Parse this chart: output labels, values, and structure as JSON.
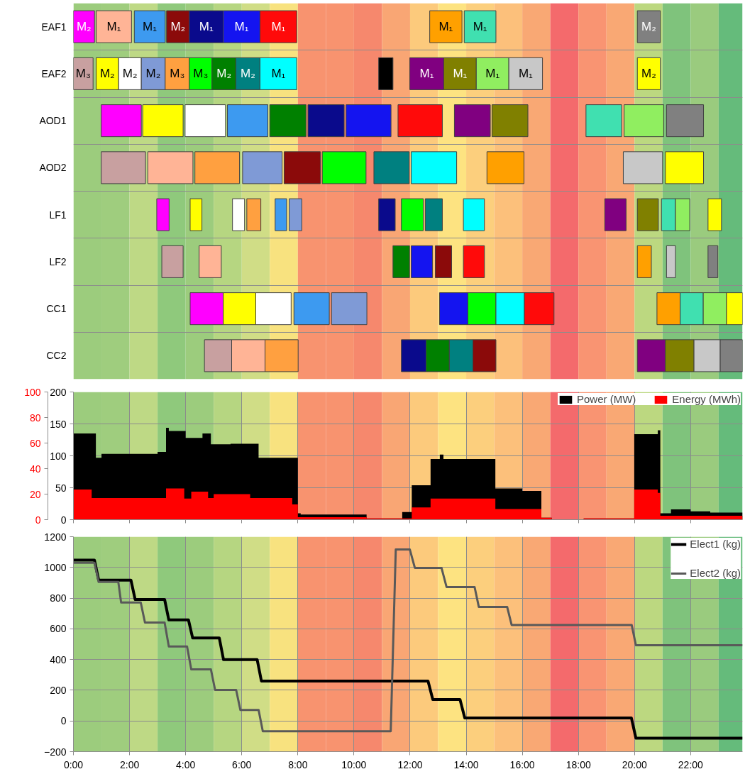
{
  "chart_data": [
    {
      "type": "bar",
      "orientation": "horizontal",
      "categories": [
        "EAF1",
        "EAF2",
        "AOD1",
        "AOD2",
        "LF1",
        "LF2",
        "CC1",
        "CC2"
      ],
      "xlim": [
        0,
        23.85
      ],
      "tick_labels": "y",
      "grid": "y",
      "series": [
        {
          "color": "#ff00ff",
          "base": [
            0,
            null,
            0.99,
            null,
            2.97,
            null,
            4.16,
            null
          ],
          "values": [
            0.75,
            null,
            1.43,
            null,
            0.44,
            null,
            1.18,
            null
          ],
          "value_labels": [
            "M₂",
            null,
            null,
            null,
            null,
            null,
            null,
            null
          ]
        },
        {
          "color": "#ffb496",
          "base": [
            0.81,
            null,
            null,
            2.65,
            null,
            4.48,
            null,
            5.64
          ],
          "values": [
            1.26,
            null,
            null,
            1.61,
            null,
            0.79,
            null,
            1.19
          ],
          "value_labels": [
            "M₁",
            null,
            null,
            null,
            null,
            null,
            null,
            null
          ]
        },
        {
          "color": "#3d9af0",
          "base": [
            2.17,
            null,
            5.49,
            null,
            7.19,
            null,
            7.86,
            null
          ],
          "values": [
            1.1,
            null,
            1.44,
            null,
            0.41,
            null,
            1.26,
            null
          ],
          "value_labels": [
            "M₁",
            null,
            null,
            null,
            null,
            null,
            null,
            null
          ]
        },
        {
          "color": "#8b0a0a",
          "base": [
            3.32,
            null,
            null,
            7.51,
            null,
            12.9,
            null,
            14.24
          ],
          "values": [
            0.81,
            null,
            null,
            1.29,
            null,
            0.58,
            null,
            0.82
          ],
          "value_labels": [
            "M₂",
            null,
            null,
            null,
            null,
            null,
            null,
            null
          ]
        },
        {
          "color": "#0a0a8c",
          "base": [
            4.13,
            null,
            8.36,
            null,
            10.88,
            null,
            null,
            11.69
          ],
          "values": [
            1.21,
            null,
            1.29,
            null,
            0.59,
            null,
            null,
            0.88
          ],
          "value_labels": [
            "M₁",
            null,
            null,
            null,
            null,
            null,
            null,
            null
          ]
        },
        {
          "color": "#1414f0",
          "base": [
            5.34,
            null,
            9.72,
            null,
            null,
            12.04,
            13.05,
            null
          ],
          "values": [
            1.31,
            null,
            1.6,
            null,
            null,
            0.76,
            1.01,
            null
          ],
          "value_labels": [
            "M₁",
            null,
            null,
            null,
            null,
            null,
            null,
            null
          ]
        },
        {
          "color": "#ff0a0a",
          "base": [
            6.65,
            null,
            11.57,
            null,
            null,
            13.9,
            16.07,
            null
          ],
          "values": [
            1.31,
            null,
            1.58,
            null,
            null,
            0.75,
            1.06,
            null
          ],
          "value_labels": [
            "M₁",
            null,
            null,
            null,
            null,
            null,
            null,
            null
          ]
        },
        {
          "color": "#ffa000",
          "base": [
            12.7,
            null,
            null,
            14.74,
            null,
            20.1,
            20.8,
            null
          ],
          "values": [
            1.15,
            null,
            null,
            1.32,
            null,
            0.5,
            0.83,
            null
          ],
          "value_labels": [
            "M₁",
            null,
            null,
            null,
            null,
            null,
            null,
            null
          ]
        },
        {
          "color": "#40e0b0",
          "base": [
            13.93,
            null,
            18.27,
            null,
            20.96,
            null,
            21.63,
            null
          ],
          "values": [
            1.13,
            null,
            1.27,
            null,
            0.5,
            null,
            0.82,
            null
          ],
          "value_labels": [
            "M₁",
            null,
            null,
            null,
            null,
            null,
            null,
            null
          ]
        },
        {
          "color": "#808080",
          "base": [
            20.1,
            null,
            21.14,
            null,
            null,
            22.62,
            null,
            23.05
          ],
          "values": [
            0.82,
            null,
            1.32,
            null,
            null,
            0.35,
            null,
            0.8
          ],
          "value_labels": [
            "M₂",
            null,
            null,
            null,
            null,
            null,
            null,
            null
          ]
        },
        {
          "color": "#c8a0a0",
          "base": [
            null,
            0,
            null,
            0.99,
            null,
            3.15,
            null,
            4.67
          ],
          "values": [
            null,
            0.7,
            null,
            1.58,
            null,
            0.76,
            null,
            0.97
          ],
          "value_labels": [
            null,
            "M₃",
            null,
            null,
            null,
            null,
            null,
            null
          ]
        },
        {
          "color": "#ffff00",
          "base": [
            null,
            0.81,
            2.47,
            null,
            4.16,
            null,
            5.34,
            null
          ],
          "values": [
            null,
            0.8,
            1.44,
            null,
            0.42,
            null,
            1.16,
            null
          ],
          "value_labels": [
            null,
            "M₂",
            null,
            null,
            null,
            null,
            null,
            null
          ]
        },
        {
          "color": "#ffffff",
          "base": [
            null,
            1.61,
            3.98,
            null,
            5.67,
            null,
            6.5,
            null
          ],
          "values": [
            null,
            0.81,
            1.44,
            null,
            0.43,
            null,
            1.26,
            null
          ],
          "value_labels": [
            null,
            "M₂",
            null,
            null,
            null,
            null,
            null,
            null
          ]
        },
        {
          "color": "#7f9ad6",
          "base": [
            null,
            2.42,
            null,
            6.03,
            7.69,
            null,
            9.2,
            null
          ],
          "values": [
            null,
            0.85,
            null,
            1.41,
            0.45,
            null,
            1.26,
            null
          ],
          "value_labels": [
            null,
            "M₂",
            null,
            null,
            null,
            null,
            null,
            null
          ]
        },
        {
          "color": "#ffa040",
          "base": [
            null,
            3.27,
            null,
            4.33,
            6.18,
            null,
            null,
            6.83
          ],
          "values": [
            null,
            0.86,
            null,
            1.59,
            0.5,
            null,
            null,
            1.18
          ],
          "value_labels": [
            null,
            "M₃",
            null,
            null,
            null,
            null,
            null,
            null
          ]
        },
        {
          "color": "#00ff00",
          "base": [
            null,
            4.13,
            null,
            8.87,
            11.69,
            null,
            14.06,
            null
          ],
          "values": [
            null,
            0.81,
            null,
            1.56,
            0.78,
            null,
            1.0,
            null
          ],
          "value_labels": [
            null,
            "M₃",
            null,
            null,
            null,
            null,
            null,
            null
          ]
        },
        {
          "color": "#008000",
          "base": [
            null,
            4.94,
            7.0,
            null,
            null,
            11.39,
            null,
            12.57
          ],
          "values": [
            null,
            0.85,
            1.29,
            null,
            null,
            0.59,
            null,
            0.83
          ],
          "value_labels": [
            null,
            "M₂",
            null,
            null,
            null,
            null,
            null,
            null
          ]
        },
        {
          "color": "#008080",
          "base": [
            null,
            5.79,
            null,
            10.71,
            12.54,
            null,
            null,
            13.4
          ],
          "values": [
            null,
            0.86,
            null,
            1.26,
            0.61,
            null,
            null,
            0.84
          ],
          "value_labels": [
            null,
            "M₂",
            null,
            null,
            null,
            null,
            null,
            null
          ]
        },
        {
          "color": "#00ffff",
          "base": [
            null,
            6.65,
            null,
            12.04,
            13.9,
            null,
            15.06,
            null
          ],
          "values": [
            null,
            1.31,
            null,
            1.62,
            0.75,
            null,
            1.01,
            null
          ],
          "value_labels": [
            null,
            "M₁",
            null,
            null,
            null,
            null,
            null,
            null
          ]
        },
        {
          "color": "#000000",
          "base": [
            null,
            10.88,
            null,
            null,
            null,
            null,
            null,
            null
          ],
          "values": [
            null,
            0.51,
            null,
            null,
            null,
            null,
            null,
            null
          ]
        },
        {
          "color": "#800080",
          "base": [
            null,
            11.99,
            13.58,
            null,
            18.94,
            null,
            null,
            20.1
          ],
          "values": [
            null,
            1.21,
            1.28,
            null,
            0.76,
            null,
            null,
            1.0
          ],
          "value_labels": [
            null,
            "M₁",
            null,
            null,
            null,
            null,
            null,
            null
          ]
        },
        {
          "color": "#808000",
          "base": [
            null,
            13.2,
            14.92,
            null,
            20.1,
            null,
            null,
            21.1
          ],
          "values": [
            null,
            1.16,
            1.28,
            null,
            0.75,
            null,
            null,
            1.02
          ],
          "value_labels": [
            null,
            "M₁",
            null,
            null,
            null,
            null,
            null,
            null
          ]
        },
        {
          "color": "#90ee60",
          "base": [
            null,
            14.36,
            19.63,
            null,
            21.46,
            null,
            22.45,
            null
          ],
          "values": [
            null,
            1.16,
            1.41,
            null,
            0.51,
            null,
            0.83,
            null
          ],
          "value_labels": [
            null,
            "M₁",
            null,
            null,
            null,
            null,
            null,
            null
          ]
        },
        {
          "color": "#c8c8c8",
          "base": [
            null,
            15.52,
            null,
            19.6,
            null,
            21.14,
            null,
            22.12
          ],
          "values": [
            null,
            1.2,
            null,
            1.4,
            null,
            0.32,
            null,
            0.93
          ],
          "value_labels": [
            null,
            "M₁",
            null,
            null,
            null,
            null,
            null,
            null
          ]
        },
        {
          "color": "#ffff00",
          "base": [
            null,
            20.1,
            null,
            21.1,
            22.62,
            null,
            23.28,
            null
          ],
          "values": [
            null,
            0.82,
            null,
            1.36,
            0.48,
            null,
            0.57,
            null
          ],
          "value_labels": [
            null,
            "M₂",
            null,
            null,
            null,
            null,
            null,
            null
          ]
        }
      ],
      "bands": [
        {
          "axis": "x",
          "from": 0,
          "to": 1,
          "color": "#9ccc7d"
        },
        {
          "axis": "x",
          "from": 1,
          "to": 2,
          "color": "#9fcd7e"
        },
        {
          "axis": "x",
          "from": 2,
          "to": 3,
          "color": "#bed985"
        },
        {
          "axis": "x",
          "from": 3,
          "to": 4,
          "color": "#8fc97c"
        },
        {
          "axis": "x",
          "from": 4,
          "to": 5,
          "color": "#9ccc7d"
        },
        {
          "axis": "x",
          "from": 5,
          "to": 6,
          "color": "#b6d681"
        },
        {
          "axis": "x",
          "from": 6,
          "to": 7,
          "color": "#d0dd86"
        },
        {
          "axis": "x",
          "from": 7,
          "to": 8,
          "color": "#f8e27f"
        },
        {
          "axis": "x",
          "from": 8,
          "to": 9,
          "color": "#f8936f"
        },
        {
          "axis": "x",
          "from": 9,
          "to": 10,
          "color": "#f8936f"
        },
        {
          "axis": "x",
          "from": 10,
          "to": 11,
          "color": "#f6886d"
        },
        {
          "axis": "x",
          "from": 11,
          "to": 12,
          "color": "#f9a674"
        },
        {
          "axis": "x",
          "from": 12,
          "to": 13,
          "color": "#fcca7c"
        },
        {
          "axis": "x",
          "from": 13,
          "to": 14,
          "color": "#fde381"
        },
        {
          "axis": "x",
          "from": 14,
          "to": 15,
          "color": "#fccf7d"
        },
        {
          "axis": "x",
          "from": 15,
          "to": 16,
          "color": "#fcc07b"
        },
        {
          "axis": "x",
          "from": 16,
          "to": 17,
          "color": "#f9a874"
        },
        {
          "axis": "x",
          "from": 17,
          "to": 18,
          "color": "#f46a6c"
        },
        {
          "axis": "x",
          "from": 18,
          "to": 19,
          "color": "#f99472"
        },
        {
          "axis": "x",
          "from": 19,
          "to": 20,
          "color": "#f9a874"
        },
        {
          "axis": "x",
          "from": 20,
          "to": 21,
          "color": "#bcd880"
        },
        {
          "axis": "x",
          "from": 21,
          "to": 22,
          "color": "#7fc37c"
        },
        {
          "axis": "x",
          "from": 22,
          "to": 23,
          "color": "#9acb7e"
        },
        {
          "axis": "x",
          "from": 23,
          "to": 23.85,
          "color": "#65bb7b"
        }
      ]
    },
    {
      "type": "area",
      "xlim": [
        0,
        23.85
      ],
      "ylim": [
        0,
        200
      ],
      "yticks": [
        0,
        50,
        100,
        150,
        200
      ],
      "y2lim": [
        0,
        100
      ],
      "y2ticks": [
        0,
        20,
        40,
        60,
        80,
        100
      ],
      "xticks": [
        {
          "value": 0,
          "label": null
        },
        {
          "value": 2,
          "label": null
        },
        {
          "value": 4,
          "label": null
        },
        {
          "value": 6,
          "label": null
        },
        {
          "value": 8,
          "label": null
        },
        {
          "value": 10,
          "label": null
        },
        {
          "value": 12,
          "label": null
        },
        {
          "value": 14,
          "label": null
        },
        {
          "value": 16,
          "label": null
        },
        {
          "value": 18,
          "label": null
        },
        {
          "value": 20,
          "label": null
        },
        {
          "value": 22,
          "label": null
        }
      ],
      "tick_labels": "y",
      "grid": true,
      "legend": "top right",
      "series": [
        {
          "name": "Power (MW)",
          "color": "#000000",
          "x": [
            0,
            0.8,
            0.8,
            1.0,
            1.0,
            3.0,
            3.0,
            3.3,
            3.3,
            3.4,
            3.4,
            4.0,
            4.0,
            4.6,
            4.6,
            4.9,
            4.9,
            5.6,
            5.6,
            6.6,
            6.6,
            7.2,
            7.2,
            8.0,
            8.0,
            8.1,
            8.1,
            10.45,
            10.45,
            11.72,
            11.72,
            12.06,
            12.06,
            12.73,
            12.73,
            13.06,
            13.06,
            13.19,
            13.19,
            15.04,
            15.04,
            16.0,
            16.0,
            16.68,
            16.68,
            17.05,
            17.05,
            18.19,
            18.19,
            19.99,
            19.99,
            20.83,
            20.83,
            20.92,
            20.92,
            21.3,
            21.3,
            22.0,
            22.0,
            22.7,
            22.7,
            23.85
          ],
          "values": [
            135,
            135,
            97,
            97,
            103,
            103,
            106,
            106,
            144,
            144,
            139,
            139,
            128,
            128,
            135,
            135,
            118,
            118,
            119,
            119,
            97,
            97,
            97,
            97,
            10,
            10,
            8,
            8,
            2,
            2,
            12,
            12,
            54,
            54,
            95,
            95,
            102,
            102,
            95,
            95,
            49,
            49,
            45,
            45,
            3,
            3,
            0,
            0,
            2,
            2,
            134,
            134,
            140,
            140,
            10,
            10,
            16,
            16,
            13,
            13,
            11,
            11
          ]
        },
        {
          "name": "Energy (MWh)",
          "color": "#ff0000",
          "axis": "y2",
          "x": [
            0,
            0.65,
            0.65,
            3.3,
            3.3,
            3.95,
            3.95,
            4.2,
            4.2,
            4.8,
            4.8,
            5.0,
            5.0,
            6.3,
            6.3,
            7.8,
            7.8,
            8.0,
            8.0,
            10.45,
            10.45,
            12.06,
            12.06,
            12.73,
            12.73,
            15.04,
            15.04,
            16.68,
            16.68,
            17.05,
            17.05,
            18.19,
            18.19,
            19.99,
            19.99,
            20.83,
            20.83,
            20.92,
            20.92,
            23.85
          ],
          "values": [
            23.6,
            23.6,
            17,
            17,
            24.4,
            24.4,
            16.5,
            16.5,
            22,
            22,
            17,
            17,
            20,
            20,
            17,
            17,
            12,
            12,
            2,
            2,
            1,
            1,
            9.6,
            9.6,
            16.5,
            16.5,
            8.4,
            8.4,
            1.5,
            1.5,
            0,
            0,
            1,
            1,
            23.6,
            23.6,
            21,
            21,
            3,
            3
          ]
        }
      ],
      "bands": [
        {
          "axis": "x",
          "from": 0,
          "to": 1,
          "color": "#9ccc7d"
        },
        {
          "axis": "x",
          "from": 1,
          "to": 2,
          "color": "#9fcd7e"
        },
        {
          "axis": "x",
          "from": 2,
          "to": 3,
          "color": "#bed985"
        },
        {
          "axis": "x",
          "from": 3,
          "to": 4,
          "color": "#8fc97c"
        },
        {
          "axis": "x",
          "from": 4,
          "to": 5,
          "color": "#9ccc7d"
        },
        {
          "axis": "x",
          "from": 5,
          "to": 6,
          "color": "#b6d681"
        },
        {
          "axis": "x",
          "from": 6,
          "to": 7,
          "color": "#d0dd86"
        },
        {
          "axis": "x",
          "from": 7,
          "to": 8,
          "color": "#f8e27f"
        },
        {
          "axis": "x",
          "from": 8,
          "to": 9,
          "color": "#f8936f"
        },
        {
          "axis": "x",
          "from": 9,
          "to": 10,
          "color": "#f8936f"
        },
        {
          "axis": "x",
          "from": 10,
          "to": 11,
          "color": "#f6886d"
        },
        {
          "axis": "x",
          "from": 11,
          "to": 12,
          "color": "#f9a674"
        },
        {
          "axis": "x",
          "from": 12,
          "to": 13,
          "color": "#fcca7c"
        },
        {
          "axis": "x",
          "from": 13,
          "to": 14,
          "color": "#fde381"
        },
        {
          "axis": "x",
          "from": 14,
          "to": 15,
          "color": "#fccf7d"
        },
        {
          "axis": "x",
          "from": 15,
          "to": 16,
          "color": "#fcc07b"
        },
        {
          "axis": "x",
          "from": 16,
          "to": 17,
          "color": "#f9a874"
        },
        {
          "axis": "x",
          "from": 17,
          "to": 18,
          "color": "#f46a6c"
        },
        {
          "axis": "x",
          "from": 18,
          "to": 19,
          "color": "#f99472"
        },
        {
          "axis": "x",
          "from": 19,
          "to": 20,
          "color": "#f9a874"
        },
        {
          "axis": "x",
          "from": 20,
          "to": 21,
          "color": "#bcd880"
        },
        {
          "axis": "x",
          "from": 21,
          "to": 22,
          "color": "#7fc37c"
        },
        {
          "axis": "x",
          "from": 22,
          "to": 23,
          "color": "#9acb7e"
        },
        {
          "axis": "x",
          "from": 23,
          "to": 23.85,
          "color": "#65bb7b"
        }
      ]
    },
    {
      "type": "line",
      "xlim": [
        0,
        23.85
      ],
      "ylim": [
        -200,
        1200
      ],
      "yticks": [
        -200,
        0,
        200,
        400,
        600,
        800,
        1000,
        1200
      ],
      "xticks": [
        {
          "value": 0,
          "label": "0:00"
        },
        {
          "value": 2,
          "label": "2:00"
        },
        {
          "value": 4,
          "label": "4:00"
        },
        {
          "value": 6,
          "label": "6:00"
        },
        {
          "value": 8,
          "label": "8:00"
        },
        {
          "value": 10,
          "label": "10:00"
        },
        {
          "value": 12,
          "label": "12:00"
        },
        {
          "value": 14,
          "label": "14:00"
        },
        {
          "value": 16,
          "label": "16:00"
        },
        {
          "value": 18,
          "label": "18:00"
        },
        {
          "value": 20,
          "label": "20:00"
        },
        {
          "value": 22,
          "label": "22:00"
        }
      ],
      "grid": true,
      "legend": "top right",
      "line_style": "solid",
      "series": [
        {
          "name": "Elect1 (kg)",
          "color": "#000000",
          "x": [
            0,
            0.75,
            0.9,
            2.05,
            2.2,
            3.25,
            3.4,
            4.1,
            4.25,
            5.2,
            5.35,
            6.55,
            6.7,
            12.64,
            12.81,
            13.78,
            13.95,
            19.89,
            20.05,
            23.85
          ],
          "values": [
            1047,
            1047,
            917,
            917,
            791,
            791,
            658,
            658,
            540,
            540,
            399,
            399,
            260,
            260,
            140,
            140,
            19,
            19,
            -112,
            -112
          ]
        },
        {
          "name": "Elect2 (kg)",
          "color": "#595959",
          "x": [
            0,
            0.75,
            0.9,
            1.6,
            1.7,
            2.4,
            2.55,
            3.25,
            3.4,
            4.05,
            4.2,
            4.9,
            5.05,
            5.8,
            5.95,
            6.6,
            6.75,
            11.31,
            11.49,
            11.99,
            12.17,
            13.12,
            13.3,
            14.3,
            14.45,
            15.46,
            15.62,
            19.9,
            20.05,
            23.85
          ],
          "values": [
            1030,
            1030,
            905,
            905,
            771,
            771,
            641,
            641,
            485,
            485,
            336,
            336,
            202,
            202,
            72,
            72,
            -67,
            -67,
            1117,
            1117,
            997,
            997,
            872,
            872,
            743,
            743,
            625,
            625,
            493,
            493
          ]
        }
      ],
      "bands": [
        {
          "axis": "x",
          "from": 0,
          "to": 1,
          "color": "#9ccc7d"
        },
        {
          "axis": "x",
          "from": 1,
          "to": 2,
          "color": "#9fcd7e"
        },
        {
          "axis": "x",
          "from": 2,
          "to": 3,
          "color": "#bed985"
        },
        {
          "axis": "x",
          "from": 3,
          "to": 4,
          "color": "#8fc97c"
        },
        {
          "axis": "x",
          "from": 4,
          "to": 5,
          "color": "#9ccc7d"
        },
        {
          "axis": "x",
          "from": 5,
          "to": 6,
          "color": "#b6d681"
        },
        {
          "axis": "x",
          "from": 6,
          "to": 7,
          "color": "#d0dd86"
        },
        {
          "axis": "x",
          "from": 7,
          "to": 8,
          "color": "#f8e27f"
        },
        {
          "axis": "x",
          "from": 8,
          "to": 9,
          "color": "#f8936f"
        },
        {
          "axis": "x",
          "from": 9,
          "to": 10,
          "color": "#f8936f"
        },
        {
          "axis": "x",
          "from": 10,
          "to": 11,
          "color": "#f6886d"
        },
        {
          "axis": "x",
          "from": 11,
          "to": 12,
          "color": "#f9a674"
        },
        {
          "axis": "x",
          "from": 12,
          "to": 13,
          "color": "#fcca7c"
        },
        {
          "axis": "x",
          "from": 13,
          "to": 14,
          "color": "#fde381"
        },
        {
          "axis": "x",
          "from": 14,
          "to": 15,
          "color": "#fccf7d"
        },
        {
          "axis": "x",
          "from": 15,
          "to": 16,
          "color": "#fcc07b"
        },
        {
          "axis": "x",
          "from": 16,
          "to": 17,
          "color": "#f9a874"
        },
        {
          "axis": "x",
          "from": 17,
          "to": 18,
          "color": "#f46a6c"
        },
        {
          "axis": "x",
          "from": 18,
          "to": 19,
          "color": "#f99472"
        },
        {
          "axis": "x",
          "from": 19,
          "to": 20,
          "color": "#f9a874"
        },
        {
          "axis": "x",
          "from": 20,
          "to": 21,
          "color": "#bcd880"
        },
        {
          "axis": "x",
          "from": 21,
          "to": 22,
          "color": "#7fc37c"
        },
        {
          "axis": "x",
          "from": 22,
          "to": 23,
          "color": "#9acb7e"
        },
        {
          "axis": "x",
          "from": 23,
          "to": 23.85,
          "color": "#65bb7b"
        }
      ]
    }
  ]
}
